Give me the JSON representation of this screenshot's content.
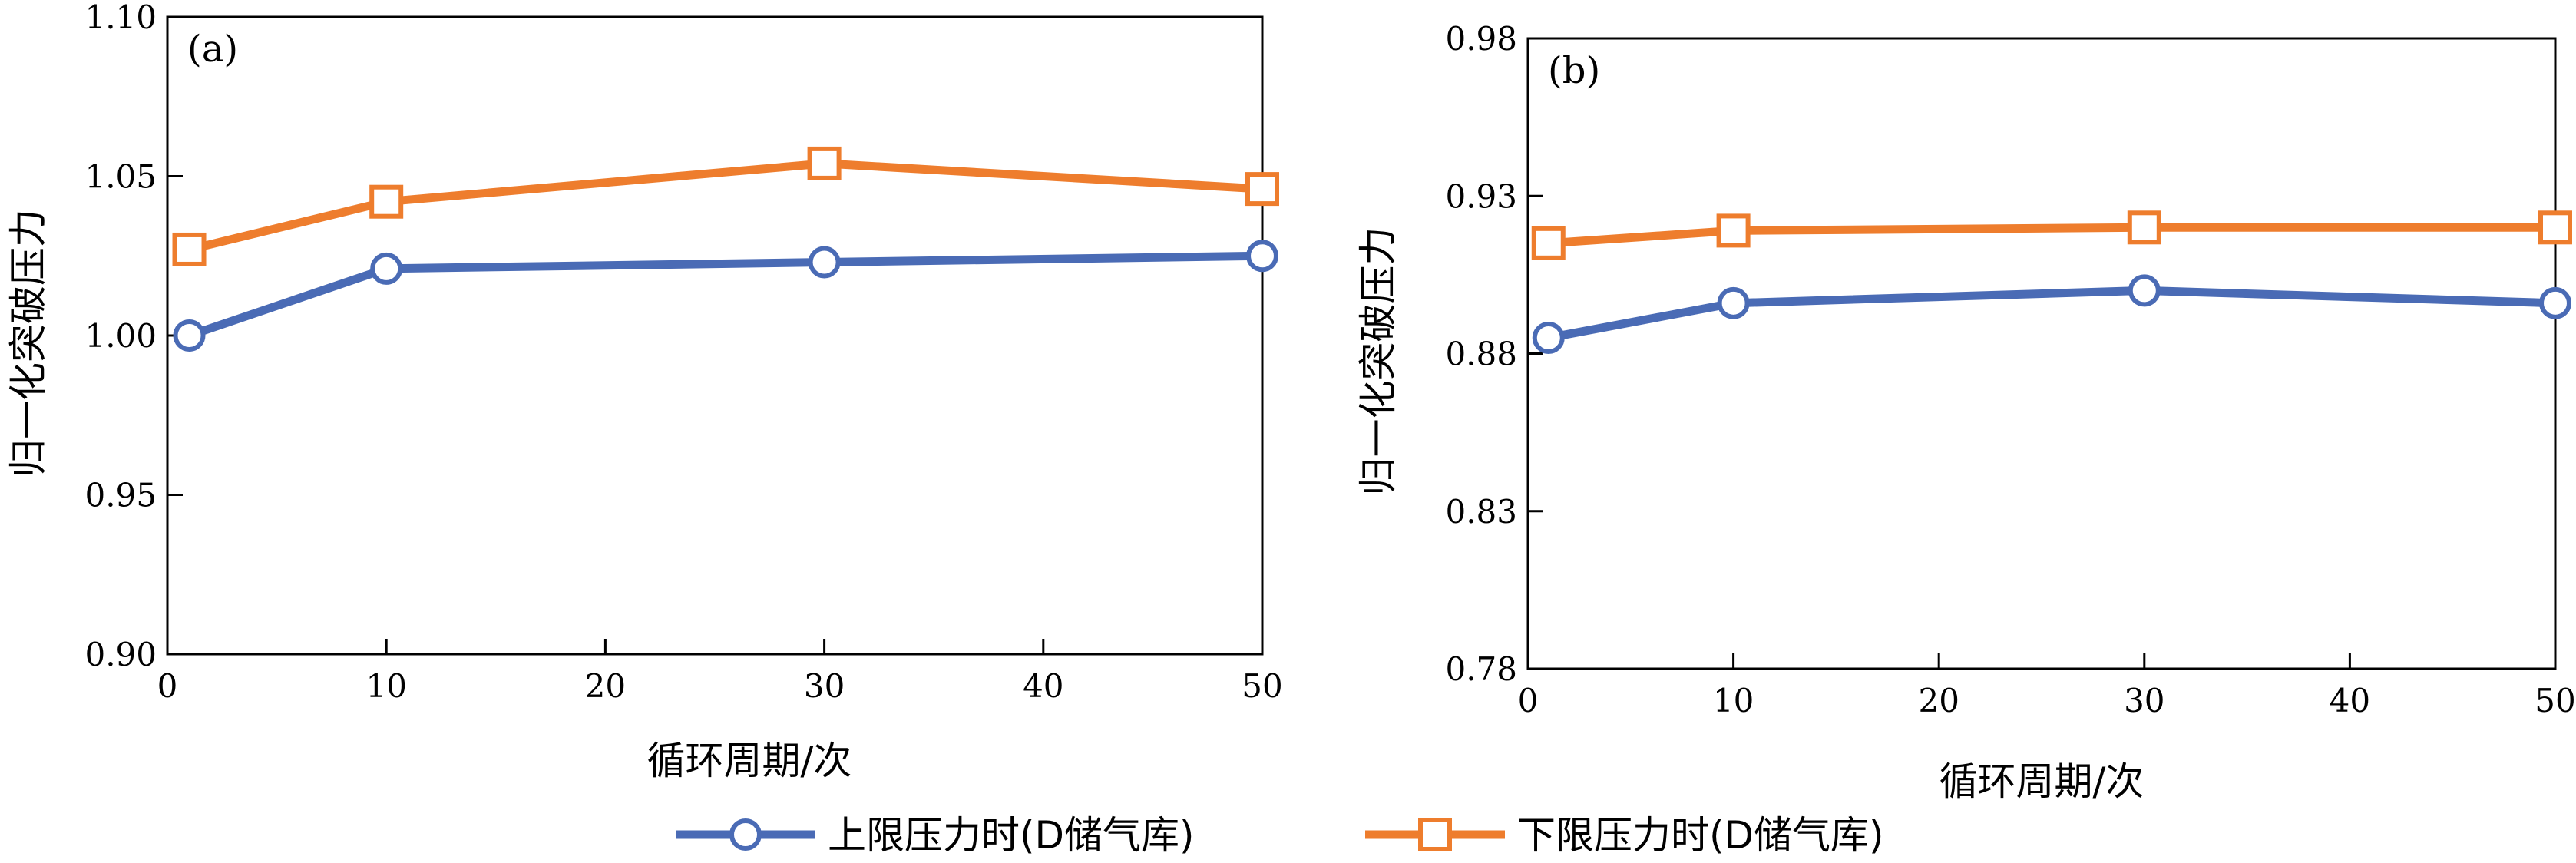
{
  "chart_data": [
    {
      "type": "line",
      "panel_label": "(a)",
      "xlabel": "循环周期/次",
      "ylabel": "归一化突破压力",
      "xlim": [
        0,
        50
      ],
      "ylim": [
        0.9,
        1.1
      ],
      "xticks": [
        0,
        10,
        20,
        30,
        40,
        50
      ],
      "yticks": [
        0.9,
        0.95,
        1.0,
        1.05,
        1.1
      ],
      "ytick_labels": [
        "0.90",
        "0.95",
        "1.00",
        "1.05",
        "1.10"
      ],
      "grid": false,
      "series": [
        {
          "name": "上限压力时(D储气库)",
          "color": "#4a6bb5",
          "marker": "circle",
          "x": [
            1,
            10,
            30,
            50
          ],
          "y": [
            1.0,
            1.021,
            1.023,
            1.025
          ]
        },
        {
          "name": "下限压力时(D储气库)",
          "color": "#ee7d2d",
          "marker": "square",
          "x": [
            1,
            10,
            30,
            50
          ],
          "y": [
            1.027,
            1.042,
            1.054,
            1.046
          ]
        }
      ]
    },
    {
      "type": "line",
      "panel_label": "(b)",
      "xlabel": "循环周期/次",
      "ylabel": "归一化突破压力",
      "xlim": [
        0,
        50
      ],
      "ylim": [
        0.78,
        0.98
      ],
      "xticks": [
        0,
        10,
        20,
        30,
        40,
        50
      ],
      "yticks": [
        0.78,
        0.83,
        0.88,
        0.93,
        0.98
      ],
      "ytick_labels": [
        "0.78",
        "0.83",
        "0.88",
        "0.93",
        "0.98"
      ],
      "grid": false,
      "series": [
        {
          "name": "上限压力时(D储气库)",
          "color": "#4a6bb5",
          "marker": "circle",
          "x": [
            1,
            10,
            30,
            50
          ],
          "y": [
            0.885,
            0.896,
            0.9,
            0.896
          ]
        },
        {
          "name": "下限压力时(D储气库)",
          "color": "#ee7d2d",
          "marker": "square",
          "x": [
            1,
            10,
            30,
            50
          ],
          "y": [
            0.915,
            0.919,
            0.92,
            0.92
          ]
        }
      ]
    }
  ],
  "legend": {
    "placement": "bottom-center",
    "items": [
      {
        "label": "上限压力时(D储气库)",
        "color": "#4a6bb5",
        "marker": "circle"
      },
      {
        "label": "下限压力时(D储气库)",
        "color": "#ee7d2d",
        "marker": "square"
      }
    ]
  }
}
